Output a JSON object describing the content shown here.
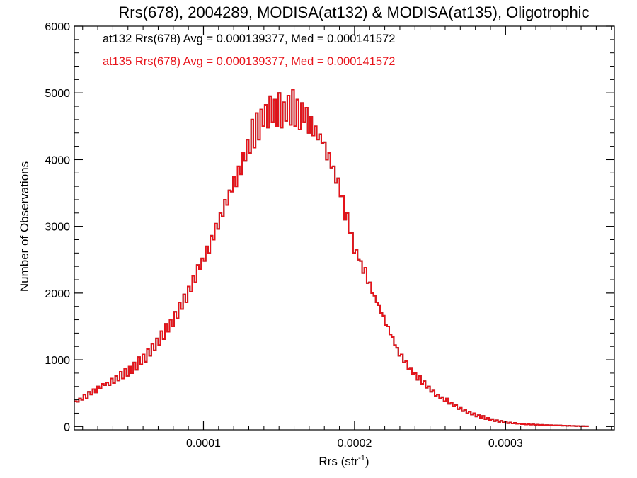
{
  "chart_data": {
    "type": "histogram",
    "title": "Rrs(678), 2004289, MODISA(at132) & MODISA(at135), Oligotrophic",
    "xlabel_base": "Rrs (str",
    "xlabel_sup": "-1",
    "xlabel_end": ")",
    "ylabel": "Number of Observations",
    "xlim": [
      1.45e-05,
      0.000372
    ],
    "ylim": [
      -50,
      6000
    ],
    "x_ticks": [
      0.0001,
      0.0002,
      0.0003
    ],
    "x_tick_labels": [
      "0.0001",
      "0.0002",
      "0.0003"
    ],
    "y_ticks": [
      0,
      1000,
      2000,
      3000,
      4000,
      5000,
      6000
    ],
    "y_tick_labels": [
      "0",
      "1000",
      "2000",
      "3000",
      "4000",
      "5000",
      "6000"
    ],
    "legend": [
      {
        "text": "at132 Rrs(678) Avg = 0.000139377, Med = 0.000141572",
        "color": "#000000"
      },
      {
        "text": "at135 Rrs(678) Avg = 0.000139377, Med = 0.000141572",
        "color": "#e8131a"
      }
    ],
    "series": [
      {
        "name": "at132",
        "color": "#000000",
        "bin_start": 1.45e-05,
        "bin_width": 1.5e-06,
        "counts": [
          380,
          370,
          420,
          400,
          480,
          420,
          520,
          480,
          560,
          510,
          600,
          570,
          640,
          620,
          660,
          620,
          720,
          650,
          760,
          690,
          820,
          720,
          870,
          760,
          900,
          800,
          960,
          850,
          1040,
          930,
          1080,
          970,
          1160,
          1060,
          1240,
          1140,
          1320,
          1220,
          1430,
          1310,
          1540,
          1420,
          1600,
          1500,
          1720,
          1620,
          1860,
          1760,
          1980,
          1860,
          2100,
          2020,
          2260,
          2160,
          2420,
          2360,
          2520,
          2480,
          2700,
          2600,
          2860,
          2800,
          3040,
          2960,
          3200,
          3150,
          3400,
          3320,
          3540,
          3520,
          3740,
          3600,
          3900,
          3780,
          4100,
          3980,
          4300,
          4100,
          4600,
          4180,
          4700,
          4300,
          4750,
          4500,
          4820,
          4480,
          4950,
          4560,
          4900,
          4500,
          5000,
          4480,
          4860,
          4580,
          4960,
          4520,
          5050,
          4500,
          4900,
          4450,
          4850,
          4560,
          4780,
          4400,
          4640,
          4360,
          4500,
          4300,
          4380,
          4250,
          4260,
          4000,
          4100,
          3880,
          3900,
          3650,
          3720,
          3450,
          3460,
          3100,
          3200,
          2900,
          2900,
          2600,
          2650,
          2500,
          2480,
          2300,
          2380,
          2150,
          2160,
          2000,
          1960,
          1860,
          1820,
          1700,
          1660,
          1520,
          1500,
          1380,
          1340,
          1220,
          1180,
          1060,
          1080,
          960,
          980,
          860,
          880,
          780,
          800,
          700,
          760,
          640,
          680,
          580,
          600,
          520,
          540,
          460,
          480,
          420,
          440,
          380,
          420,
          340,
          360,
          300,
          320,
          260,
          280,
          230,
          250,
          200,
          220,
          180,
          200,
          150,
          170,
          130,
          160,
          110,
          130,
          95,
          110,
          80,
          95,
          70,
          85,
          60,
          75,
          50,
          60,
          45,
          55,
          40,
          45,
          35,
          40,
          30,
          35,
          28,
          32,
          25,
          28,
          22,
          26,
          20,
          22,
          18,
          20,
          15,
          18,
          14,
          16,
          12,
          14,
          10,
          12,
          8,
          10,
          6,
          8,
          5,
          6,
          4,
          5
        ]
      },
      {
        "name": "at135",
        "color": "#e8131a",
        "bin_start": 1.45e-05,
        "bin_width": 1.5e-06,
        "counts": [
          380,
          370,
          420,
          400,
          480,
          420,
          520,
          480,
          560,
          510,
          600,
          570,
          640,
          620,
          660,
          620,
          720,
          650,
          760,
          690,
          820,
          720,
          870,
          760,
          900,
          800,
          960,
          850,
          1040,
          930,
          1080,
          970,
          1160,
          1060,
          1240,
          1140,
          1320,
          1220,
          1430,
          1310,
          1540,
          1420,
          1600,
          1500,
          1720,
          1620,
          1860,
          1760,
          1980,
          1860,
          2100,
          2020,
          2260,
          2160,
          2420,
          2360,
          2520,
          2480,
          2700,
          2600,
          2860,
          2800,
          3040,
          2960,
          3200,
          3150,
          3400,
          3320,
          3540,
          3520,
          3740,
          3600,
          3900,
          3780,
          4100,
          3980,
          4300,
          4100,
          4600,
          4180,
          4700,
          4300,
          4750,
          4500,
          4820,
          4480,
          4950,
          4560,
          4900,
          4500,
          5000,
          4480,
          4860,
          4580,
          4960,
          4520,
          5050,
          4500,
          4900,
          4450,
          4850,
          4560,
          4780,
          4400,
          4640,
          4360,
          4500,
          4300,
          4380,
          4250,
          4260,
          4000,
          4100,
          3880,
          3900,
          3650,
          3720,
          3450,
          3460,
          3100,
          3200,
          2900,
          2900,
          2600,
          2650,
          2500,
          2480,
          2300,
          2380,
          2150,
          2160,
          2000,
          1960,
          1860,
          1820,
          1700,
          1660,
          1520,
          1500,
          1380,
          1340,
          1220,
          1180,
          1060,
          1080,
          960,
          980,
          860,
          880,
          780,
          800,
          700,
          760,
          640,
          680,
          580,
          600,
          520,
          540,
          460,
          480,
          420,
          440,
          380,
          420,
          340,
          360,
          300,
          320,
          260,
          280,
          230,
          250,
          200,
          220,
          180,
          200,
          150,
          170,
          130,
          160,
          110,
          130,
          95,
          110,
          80,
          95,
          70,
          85,
          60,
          75,
          50,
          60,
          45,
          55,
          40,
          45,
          35,
          40,
          30,
          35,
          28,
          32,
          25,
          28,
          22,
          26,
          20,
          22,
          18,
          20,
          15,
          18,
          14,
          16,
          12,
          14,
          10,
          12,
          8,
          10,
          6,
          8,
          5,
          6,
          4,
          5
        ]
      }
    ],
    "grid": false,
    "legend_position": "top-left inside plot"
  }
}
